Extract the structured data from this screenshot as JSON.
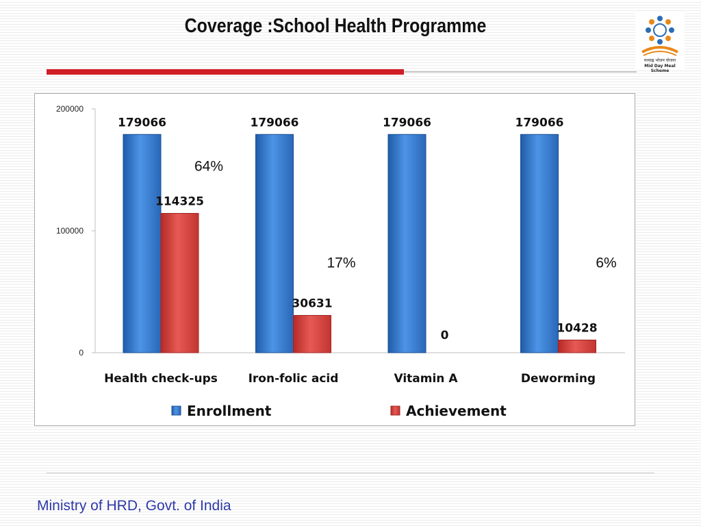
{
  "slide": {
    "title": "Coverage :School Health Programme",
    "footer": "Ministry of HRD, Govt. of India"
  },
  "logo": {
    "hindi_text": "मध्याह्न भोजन योजना",
    "english_text": "Mid Day Meal Scheme",
    "colors": {
      "dots": "#2a6db5",
      "accent": "#e8891b"
    }
  },
  "chart_data": {
    "type": "bar",
    "categories": [
      "Health check-ups",
      "Iron-folic acid",
      "Vitamin A",
      "Deworming"
    ],
    "series": [
      {
        "name": "Enrollment",
        "values": [
          179066,
          179066,
          179066,
          179066
        ],
        "color": "#3a7fd5"
      },
      {
        "name": "Achievement",
        "values": [
          114325,
          30631,
          0,
          10428
        ],
        "color": "#d9403b"
      }
    ],
    "data_labels": [
      [
        "179066",
        "179066",
        "179066",
        "179066"
      ],
      [
        "114325",
        "30631",
        "0",
        "10428"
      ]
    ],
    "percent_annotations": [
      "64%",
      "17%",
      "",
      "6%"
    ],
    "yticks": [
      0,
      100000,
      200000
    ],
    "ytick_labels": [
      "0",
      "100000",
      "200000"
    ],
    "ylim": [
      0,
      200000
    ],
    "legend_position": "bottom",
    "grid": false
  }
}
